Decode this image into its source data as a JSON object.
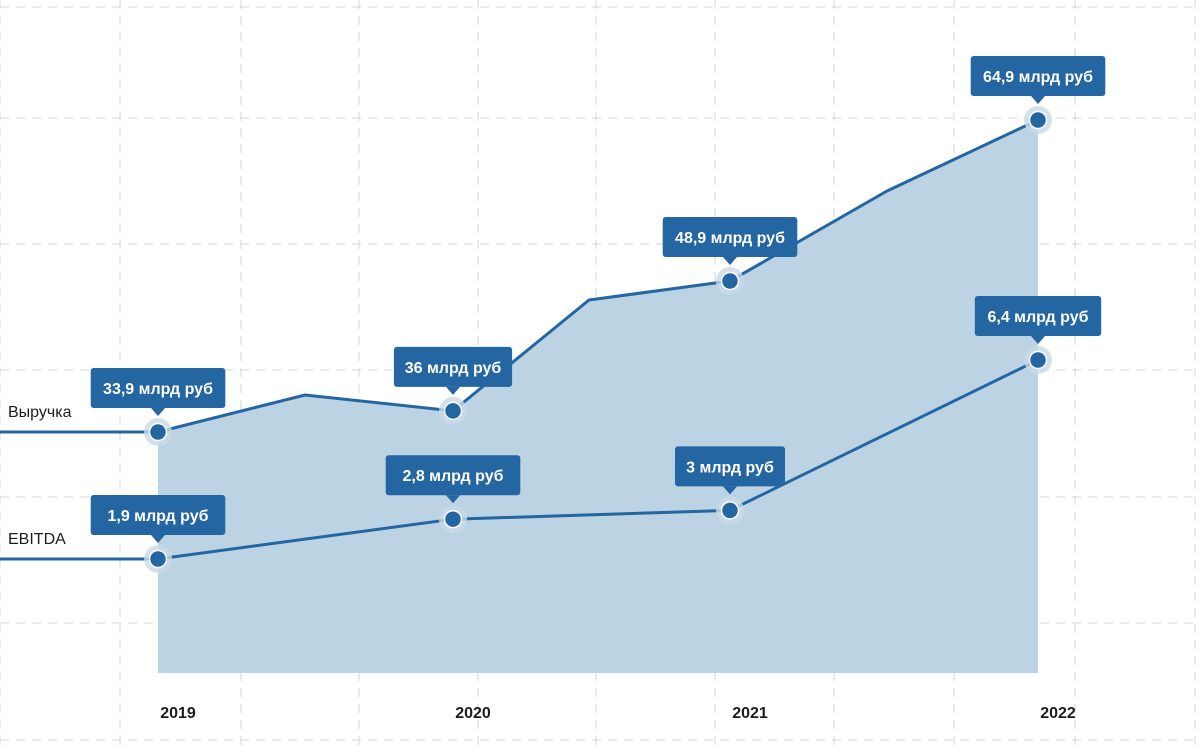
{
  "chart_data": {
    "type": "area",
    "x": [
      "2019",
      "2020",
      "2021",
      "2022"
    ],
    "series": [
      {
        "name": "Выручка",
        "values": [
          33.9,
          36,
          48.9,
          64.9
        ],
        "labels": [
          "33,9 млрд руб",
          "36 млрд руб",
          "48,9 млрд руб",
          "64,9 млрд руб"
        ]
      },
      {
        "name": "EBITDA",
        "values": [
          1.9,
          2.8,
          3,
          6.4
        ],
        "labels": [
          "1,9  млрд руб",
          "2,8  млрд руб",
          "3 млрд руб",
          "6,4 млрд руб"
        ]
      }
    ],
    "grid": true,
    "colors": {
      "line": "#2466a1",
      "area": "#bcd3e4",
      "marker_halo": "#c9d9e8",
      "callout": "#2466a1",
      "grid": "#d4d4d4"
    }
  }
}
